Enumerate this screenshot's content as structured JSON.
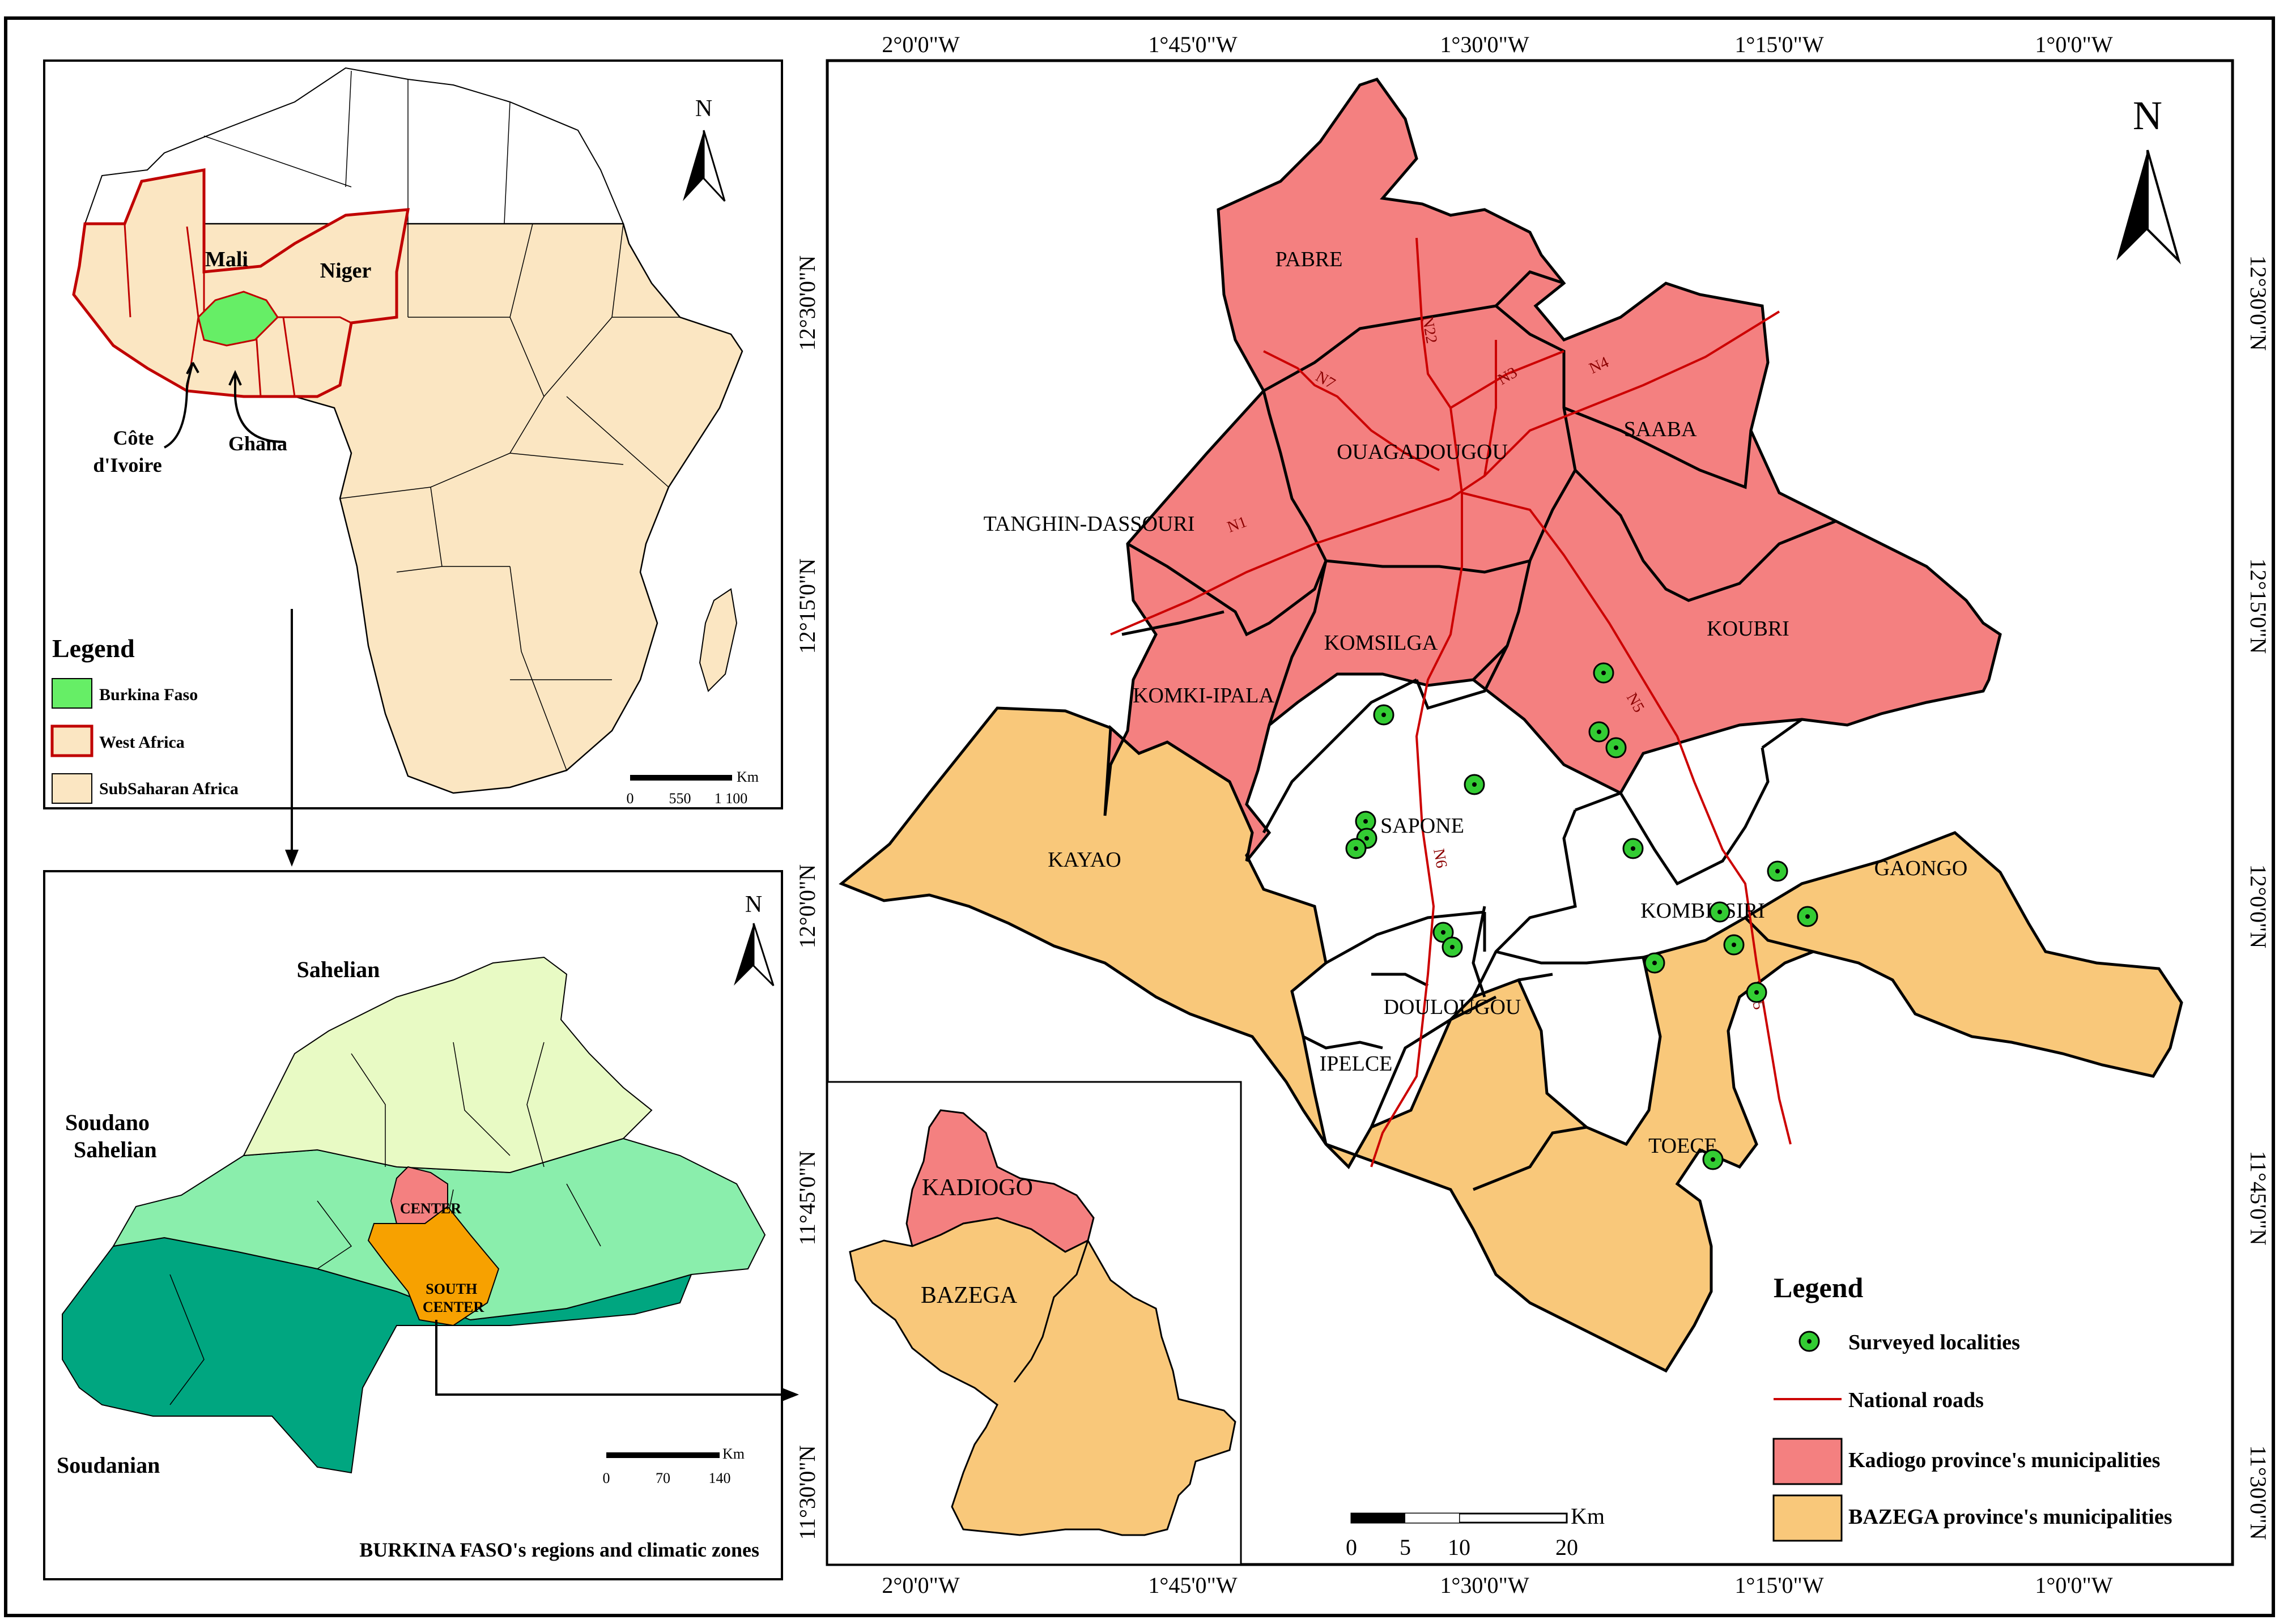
{
  "colors": {
    "burkina_faso": "#66ee66",
    "west_africa_border": "#c00000",
    "subsaharan": "#fbe6c2",
    "kadiogo": "#f48080",
    "bazega": "#f9c87a",
    "sahelian": "#e8fac4",
    "soudano_sahelian": "#8aeeac",
    "soudanian": "#00a680",
    "center_region": "#f48080",
    "south_center_region": "#f7a100",
    "surveyed_point": "#33cc33",
    "national_road": "#cc0000"
  },
  "africa_inset": {
    "north_label": "N",
    "country_labels": {
      "mali": "Mali",
      "niger": "Niger",
      "cote_divoire": "Côte\nd'Ivoire",
      "ghana": "Ghana"
    },
    "legend": {
      "title": "Legend",
      "items": [
        {
          "label": "Burkina Faso",
          "color_key": "burkina_faso"
        },
        {
          "label": "West Africa",
          "color_key": "west_africa_border"
        },
        {
          "label": "SubSaharan Africa",
          "color_key": "subsaharan"
        }
      ]
    },
    "scale": {
      "unit": "Km",
      "ticks": [
        "0",
        "550",
        "1 100"
      ]
    }
  },
  "burkina_inset": {
    "north_label": "N",
    "zones": {
      "sahelian": "Sahelian",
      "soudano_sahelian": "Soudano\nSahelian",
      "soudanian": "Soudanian"
    },
    "regions": {
      "center": "CENTER",
      "south_center": "SOUTH\nCENTER"
    },
    "scale": {
      "unit": "Km",
      "ticks": [
        "0",
        "70",
        "140"
      ]
    },
    "caption": "BURKINA  FASO's regions and climatic zones"
  },
  "provinces_inset": {
    "labels": {
      "kadiogo": "KADIOGO",
      "bazega": "BAZEGA"
    }
  },
  "main_map": {
    "north_label": "N",
    "lon_labels_top": [
      "2°0'0\"W",
      "1°45'0\"W",
      "1°30'0\"W",
      "1°15'0\"W",
      "1°0'0\"W"
    ],
    "lon_labels_bottom": [
      "2°0'0\"W",
      "1°45'0\"W",
      "1°30'0\"W",
      "1°15'0\"W",
      "1°0'0\"W"
    ],
    "lat_labels_left": [
      "12°30'0\"N",
      "12°15'0\"N",
      "12°0'0\"N",
      "11°45'0\"N",
      "11°30'0\"N"
    ],
    "lat_labels_right": [
      "12°30'0\"N",
      "12°15'0\"N",
      "12°0'0\"N",
      "11°45'0\"N",
      "11°30'0\"N"
    ],
    "municipalities": {
      "pabre": "PABRE",
      "ouagadougou": "OUAGADOUGOU",
      "saaba": "SAABA",
      "tanghin_dassouri": "TANGHIN-DASSOURI",
      "komsilga": "KOMSILGA",
      "koubri": "KOUBRI",
      "komki_ipala": "KOMKI-IPALA",
      "kayao": "KAYAO",
      "sapone": "SAPONE",
      "gaongo": "GAONGO",
      "kombissiri": "KOMBISSIRI",
      "doulougou": "DOULOUGOU",
      "ipelce": "IPELCE",
      "toece": "TOECE"
    },
    "road_labels": {
      "n1": "N1",
      "n7": "N7",
      "n22": "N22",
      "n3": "N3",
      "n4": "N4",
      "n5_north": "N5",
      "n5_south": "N5",
      "n6": "N6"
    },
    "scale": {
      "unit": "Km",
      "ticks": [
        "0",
        "5",
        "10",
        "20"
      ]
    },
    "legend": {
      "title": "Legend",
      "items": [
        {
          "label": "Surveyed localities",
          "symbol": "point"
        },
        {
          "label": "National roads",
          "symbol": "line"
        },
        {
          "label": "Kadiogo province's municipalities",
          "symbol": "kadiogo"
        },
        {
          "label": "BAZEGA province's municipalities",
          "symbol": "bazega"
        }
      ]
    }
  }
}
